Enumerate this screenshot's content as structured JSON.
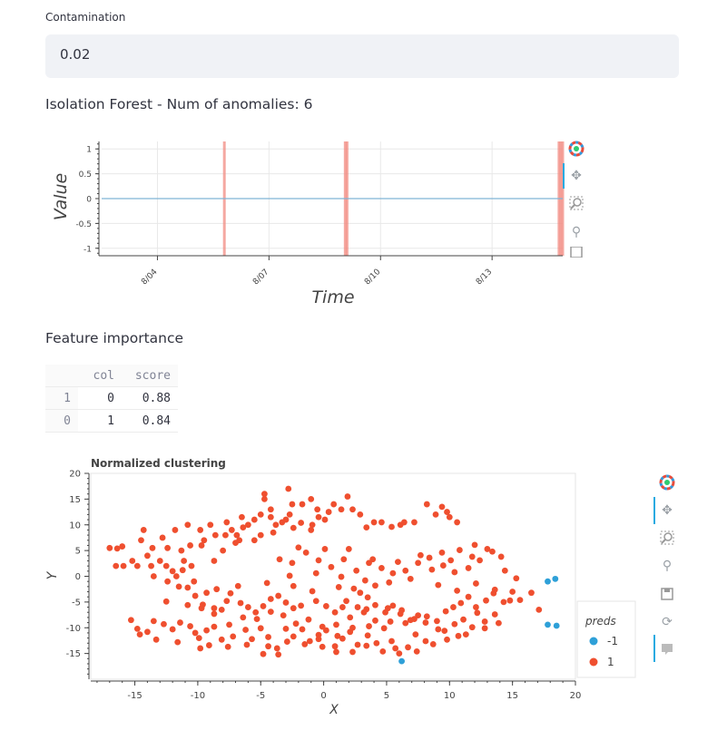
{
  "contamination": {
    "label": "Contamination",
    "value": "0.02"
  },
  "isolation": {
    "title": "Isolation Forest - Num of anomalies: 6"
  },
  "timeseries_chart": {
    "type": "line",
    "xlabel": "Time",
    "ylabel": "Value",
    "ylim": [
      -1.15,
      1.15
    ],
    "yticks": [
      "1",
      "0.5",
      "0",
      "-0.5",
      "-1"
    ],
    "ytick_values": [
      1,
      0.5,
      0,
      -0.5,
      -1
    ],
    "xticks": [
      "8/04",
      "8/07",
      "8/10",
      "8/13"
    ],
    "xtick_days": [
      4,
      7,
      10,
      13
    ],
    "xlim_days": [
      2.5,
      14.9
    ],
    "series": [
      {
        "x_days": [
          2.5,
          14.9
        ],
        "y": [
          0,
          0
        ]
      }
    ],
    "anomaly_days": [
      5.8,
      9.05,
      9.1,
      14.8,
      14.85,
      14.9
    ],
    "line_color": "#7fb3d5",
    "anomaly_color": "#f28b82"
  },
  "feature_importance": {
    "title": "Feature importance",
    "columns": [
      "col",
      "score"
    ],
    "rows": [
      {
        "index": "1",
        "col": "0",
        "score": "0.88"
      },
      {
        "index": "0",
        "col": "1",
        "score": "0.84"
      }
    ]
  },
  "chart_data": {
    "type": "scatter",
    "title": "Normalized clustering",
    "xlabel": "X",
    "ylabel": "Y",
    "xlim": [
      -18.5,
      20
    ],
    "ylim": [
      -20,
      20
    ],
    "xticks": [
      -15,
      -10,
      -5,
      0,
      5,
      10,
      15,
      20
    ],
    "yticks": [
      20,
      15,
      10,
      5,
      0,
      -5,
      -10,
      -15
    ],
    "legend": {
      "title": "preds",
      "position": "right"
    },
    "series": [
      {
        "name": "-1",
        "color": "#2ea0d8",
        "points": [
          [
            17.8,
            -1.0
          ],
          [
            18.4,
            -0.5
          ],
          [
            17.8,
            -9.4
          ],
          [
            18.5,
            -9.6
          ],
          [
            6.2,
            -16.5
          ]
        ]
      },
      {
        "name": "1",
        "color": "#ef4f2f",
        "points": [
          [
            -17,
            5.5
          ],
          [
            -16.4,
            5.4
          ],
          [
            -16,
            5.8
          ],
          [
            -16.5,
            2
          ],
          [
            -15.2,
            3
          ],
          [
            -14.3,
            9
          ],
          [
            -14.5,
            7
          ],
          [
            -14,
            4
          ],
          [
            -13.7,
            2
          ],
          [
            -13.5,
            0
          ],
          [
            -13,
            3
          ],
          [
            -12.5,
            2
          ],
          [
            -12,
            1
          ],
          [
            -12.4,
            -1
          ],
          [
            -11.7,
            0
          ],
          [
            -11.3,
            5
          ],
          [
            -11.1,
            3
          ],
          [
            -10.5,
            2
          ],
          [
            -11.8,
            9
          ],
          [
            -10.8,
            10
          ],
          [
            -9.8,
            9
          ],
          [
            -9.5,
            7
          ],
          [
            -9.7,
            6
          ],
          [
            -9,
            10
          ],
          [
            -8.6,
            8
          ],
          [
            -8.7,
            3
          ],
          [
            -7.7,
            10.5
          ],
          [
            -7.3,
            9
          ],
          [
            -8,
            5
          ],
          [
            -6.5,
            11.5
          ],
          [
            -6.4,
            9.5
          ],
          [
            -6,
            10
          ],
          [
            -7,
            6.5
          ],
          [
            -6.9,
            8
          ],
          [
            -5.5,
            11
          ],
          [
            -5,
            12
          ],
          [
            -4.7,
            15
          ],
          [
            -4.2,
            13
          ],
          [
            -3.8,
            10
          ],
          [
            -3,
            11
          ],
          [
            -2.7,
            12
          ],
          [
            -2.5,
            14
          ],
          [
            -1.7,
            14
          ],
          [
            -1,
            15
          ],
          [
            -0.5,
            13
          ],
          [
            -0.9,
            10
          ],
          [
            -1,
            9
          ],
          [
            -0.4,
            11.5
          ],
          [
            0.1,
            11
          ],
          [
            0.4,
            12.5
          ],
          [
            0.8,
            14
          ],
          [
            1.4,
            13
          ],
          [
            1.9,
            15.5
          ],
          [
            2.3,
            13
          ],
          [
            2.9,
            12
          ],
          [
            3.4,
            9.5
          ],
          [
            4,
            10.5
          ],
          [
            4.6,
            10.5
          ],
          [
            5.4,
            9.6
          ],
          [
            6.1,
            10
          ],
          [
            6.4,
            10.5
          ],
          [
            7.2,
            10.5
          ],
          [
            8.2,
            14
          ],
          [
            8.9,
            12
          ],
          [
            9.4,
            13.5
          ],
          [
            9.8,
            12.5
          ],
          [
            10,
            11.5
          ],
          [
            10.6,
            10.5
          ],
          [
            -4.7,
            16
          ],
          [
            -2.8,
            17
          ],
          [
            -4.2,
            11.5
          ],
          [
            -3.3,
            10.5
          ],
          [
            -1.8,
            10.4
          ],
          [
            -2.4,
            9.4
          ],
          [
            -4,
            8.5
          ],
          [
            -5,
            8
          ],
          [
            -6.7,
            7
          ],
          [
            -5.5,
            7
          ],
          [
            -7.8,
            8
          ],
          [
            -10.6,
            6
          ],
          [
            -12.8,
            7.5
          ],
          [
            -12.4,
            5.5
          ],
          [
            -13.6,
            5.5
          ],
          [
            -14.8,
            2
          ],
          [
            -15.9,
            2
          ],
          [
            -11.2,
            1.2
          ],
          [
            -11.5,
            -2
          ],
          [
            -10.8,
            -2.2
          ],
          [
            -10.3,
            -1
          ],
          [
            -9.3,
            -3.2
          ],
          [
            -9.6,
            -5.5
          ],
          [
            -8.7,
            -6.2
          ],
          [
            -8.1,
            -6.5
          ],
          [
            -7.7,
            -4.8
          ],
          [
            -7.4,
            -3.3
          ],
          [
            -6.6,
            -5.2
          ],
          [
            -6,
            -6
          ],
          [
            -5.4,
            -7
          ],
          [
            -4.8,
            -5.8
          ],
          [
            -4.2,
            -4.4
          ],
          [
            -3.6,
            -3.8
          ],
          [
            -3,
            -5.1
          ],
          [
            -2.4,
            -6.2
          ],
          [
            -1.8,
            -5.7
          ],
          [
            -0.6,
            -4.8
          ],
          [
            0.2,
            -5.8
          ],
          [
            0.9,
            -7
          ],
          [
            1.5,
            -6
          ],
          [
            1.8,
            -4.8
          ],
          [
            2.7,
            -6
          ],
          [
            3.4,
            -6.4
          ],
          [
            4.1,
            -8.6
          ],
          [
            4.9,
            -7
          ],
          [
            5.5,
            -5.7
          ],
          [
            6.2,
            -6.6
          ],
          [
            6.9,
            -8.5
          ],
          [
            7.5,
            -7.6
          ],
          [
            8.2,
            -7.8
          ],
          [
            9,
            -8.7
          ],
          [
            9.7,
            -6.8
          ],
          [
            10.3,
            -6
          ],
          [
            10.9,
            -5.2
          ],
          [
            11.5,
            -4
          ],
          [
            12.1,
            -6
          ],
          [
            12.9,
            -4.7
          ],
          [
            13.5,
            -3.3
          ],
          [
            14.3,
            -5
          ],
          [
            15,
            -3
          ],
          [
            15.6,
            -4.6
          ],
          [
            16.5,
            -3.2
          ],
          [
            17.1,
            -6.5
          ],
          [
            -15.3,
            -8.5
          ],
          [
            -14.8,
            -10.2
          ],
          [
            -14,
            -10.8
          ],
          [
            -13.5,
            -8.7
          ],
          [
            -12.7,
            -9.3
          ],
          [
            -12,
            -10.3
          ],
          [
            -11.4,
            -9
          ],
          [
            -10.6,
            -9.7
          ],
          [
            -9.9,
            -12
          ],
          [
            -9.3,
            -10.5
          ],
          [
            -8.7,
            -9.8
          ],
          [
            -8.1,
            -12.3
          ],
          [
            -7.2,
            -11.7
          ],
          [
            -6.2,
            -10.4
          ],
          [
            -5.7,
            -12.2
          ],
          [
            -5,
            -10.1
          ],
          [
            -4.4,
            -11.8
          ],
          [
            -3.7,
            -14
          ],
          [
            -3,
            -10.2
          ],
          [
            -2.4,
            -11.7
          ],
          [
            -1.7,
            -10.3
          ],
          [
            -1.1,
            -12.6
          ],
          [
            -0.4,
            -11.4
          ],
          [
            0.2,
            -10.5
          ],
          [
            0.9,
            -13.6
          ],
          [
            1.5,
            -12.1
          ],
          [
            2.1,
            -10.8
          ],
          [
            2.7,
            -13.3
          ],
          [
            3.5,
            -11.5
          ],
          [
            4.2,
            -13
          ],
          [
            4.8,
            -10.1
          ],
          [
            5.4,
            -12.6
          ],
          [
            6,
            -15
          ],
          [
            6.7,
            -13.8
          ],
          [
            7.4,
            -14.6
          ],
          [
            -4.8,
            -15.1
          ],
          [
            -9.8,
            -14
          ],
          [
            -10.2,
            -11
          ],
          [
            -3.6,
            -15.2
          ],
          [
            -0.1,
            -13.7
          ],
          [
            1,
            -14.7
          ],
          [
            2.3,
            -14.7
          ],
          [
            3.4,
            -13.5
          ],
          [
            4.7,
            -14.6
          ],
          [
            5.7,
            -14
          ],
          [
            7.3,
            -11.3
          ],
          [
            8.1,
            -9
          ],
          [
            9.6,
            -10.6
          ],
          [
            10.7,
            -11.6
          ],
          [
            11.8,
            -9.9
          ],
          [
            12.8,
            -8.8
          ],
          [
            13.9,
            -9.1
          ],
          [
            13.6,
            -7.4
          ],
          [
            12.2,
            -7.1
          ],
          [
            11.1,
            -8.4
          ],
          [
            10.4,
            -9.3
          ],
          [
            9.1,
            -10.3
          ],
          [
            8.1,
            -12.6
          ],
          [
            7.2,
            -8.3
          ],
          [
            6.1,
            -7.3
          ],
          [
            5.1,
            -6.2
          ],
          [
            4.1,
            -5.6
          ],
          [
            3.2,
            -7
          ],
          [
            2.1,
            -8
          ],
          [
            1,
            -9.4
          ],
          [
            -0.1,
            -9.8
          ],
          [
            -1.2,
            -8.4
          ],
          [
            -2.2,
            -9.2
          ],
          [
            -3.2,
            -7.6
          ],
          [
            -4.2,
            -6.9
          ],
          [
            -5.3,
            -8.3
          ],
          [
            -6.4,
            -8
          ],
          [
            -7.5,
            -9.4
          ],
          [
            -8.7,
            -7.3
          ],
          [
            -9.7,
            -6.2
          ],
          [
            -10.8,
            -5.6
          ],
          [
            -3.5,
            3.3
          ],
          [
            -2.5,
            2.6
          ],
          [
            -1.4,
            4.6
          ],
          [
            -0.4,
            3.1
          ],
          [
            0.6,
            1.8
          ],
          [
            1.6,
            3.3
          ],
          [
            2.6,
            1.1
          ],
          [
            3.6,
            2.6
          ],
          [
            4.6,
            1.6
          ],
          [
            5.5,
            0.6
          ],
          [
            6.5,
            1.1
          ],
          [
            7.5,
            2.6
          ],
          [
            8.4,
            3.6
          ],
          [
            9.5,
            2.1
          ],
          [
            10.4,
            0.8
          ],
          [
            11.5,
            1.6
          ],
          [
            12.4,
            3.1
          ],
          [
            13.4,
            4.8
          ],
          [
            14.4,
            1.1
          ],
          [
            15.3,
            -0.4
          ],
          [
            -2,
            5.6
          ],
          [
            0.1,
            5.3
          ],
          [
            2,
            5.3
          ],
          [
            3.9,
            3.3
          ],
          [
            5.9,
            2.8
          ],
          [
            7.7,
            4.1
          ],
          [
            9.4,
            4.6
          ],
          [
            10.8,
            5.1
          ],
          [
            12,
            6.1
          ],
          [
            13,
            5.3
          ],
          [
            14.1,
            3.8
          ],
          [
            11.8,
            3.8
          ],
          [
            10.1,
            3.1
          ],
          [
            8.6,
            1.3
          ],
          [
            6.9,
            -0.5
          ],
          [
            5.2,
            -1.2
          ],
          [
            3.3,
            -0.8
          ],
          [
            1.4,
            -0.1
          ],
          [
            -0.6,
            0.6
          ],
          [
            -2.7,
            0.1
          ],
          [
            -4.5,
            -1.3
          ],
          [
            -6.8,
            -1.9
          ],
          [
            -8.5,
            -2.5
          ],
          [
            -10.2,
            -3.8
          ],
          [
            -12.5,
            -4.9
          ],
          [
            2.4,
            -2.4
          ],
          [
            3.5,
            -4.1
          ],
          [
            4.1,
            -1.8
          ],
          [
            2.9,
            -3.2
          ],
          [
            1.2,
            -2.1
          ],
          [
            -0.9,
            -2.9
          ],
          [
            -2.4,
            -1.9
          ],
          [
            9.1,
            -1.7
          ],
          [
            10.6,
            -2.8
          ],
          [
            12.1,
            -1.4
          ],
          [
            13.6,
            -2.6
          ],
          [
            14.8,
            -4.7
          ],
          [
            12.8,
            -10.1
          ],
          [
            11.3,
            -11.3
          ],
          [
            9.8,
            -12.3
          ],
          [
            8.7,
            -13.2
          ],
          [
            6.5,
            -9.1
          ],
          [
            5.3,
            -8.8
          ],
          [
            3.6,
            -9.7
          ],
          [
            2.3,
            -10
          ],
          [
            1.1,
            -11.6
          ],
          [
            -0.4,
            -12.2
          ],
          [
            -1.5,
            -13.2
          ],
          [
            -2.9,
            -12.7
          ],
          [
            -4.4,
            -13.6
          ],
          [
            -6.1,
            -13.3
          ],
          [
            -7.6,
            -13.7
          ],
          [
            -9.1,
            -13.4
          ],
          [
            -11.6,
            -12.8
          ],
          [
            -13.3,
            -12.3
          ],
          [
            -14.6,
            -11.3
          ]
        ]
      }
    ]
  }
}
